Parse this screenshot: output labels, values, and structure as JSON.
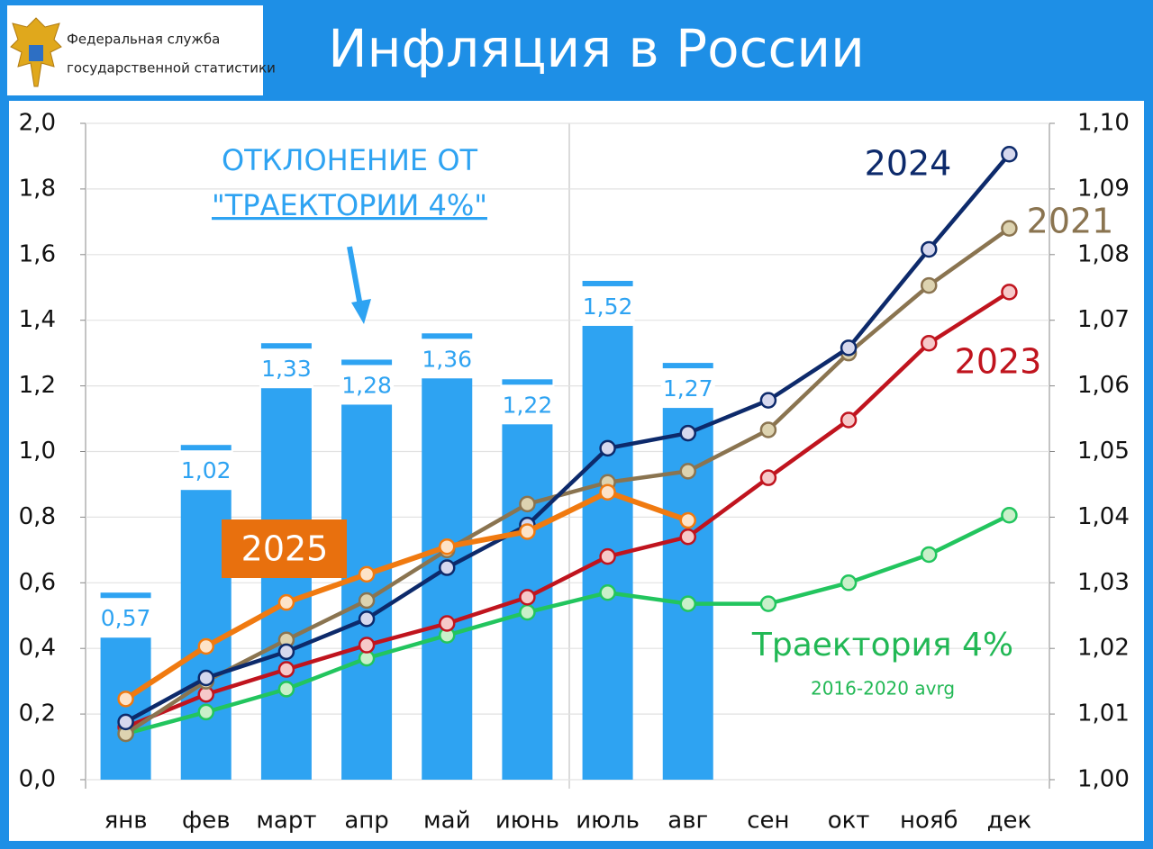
{
  "header": {
    "org_line1": "Федеральная служба",
    "org_line2": "государственной статистики"
  },
  "chart_data": {
    "type": "bar+line",
    "title": "Инфляция в России",
    "categories": [
      "янв",
      "фев",
      "март",
      "апр",
      "май",
      "июнь",
      "июль",
      "авг",
      "сен",
      "окт",
      "нояб",
      "дек"
    ],
    "ylim": [
      0,
      2.0
    ],
    "yticks": [
      {
        "value": 0,
        "label": "0,0"
      },
      {
        "value": 0.2,
        "label": "0,2"
      },
      {
        "value": 0.4,
        "label": "0,4"
      },
      {
        "value": 0.6,
        "label": "0,6"
      },
      {
        "value": 0.8,
        "label": "0,8"
      },
      {
        "value": 1.0,
        "label": "1,0"
      },
      {
        "value": 1.2,
        "label": "1,2"
      },
      {
        "value": 1.4,
        "label": "1,4"
      },
      {
        "value": 1.6,
        "label": "1,6"
      },
      {
        "value": 1.8,
        "label": "1,8"
      },
      {
        "value": 2.0,
        "label": "2,0"
      }
    ],
    "y2lim": [
      1.0,
      1.1
    ],
    "y2ticks": [
      {
        "value": 1.0,
        "label": "1,00"
      },
      {
        "value": 1.01,
        "label": "1,01"
      },
      {
        "value": 1.02,
        "label": "1,02"
      },
      {
        "value": 1.03,
        "label": "1,03"
      },
      {
        "value": 1.04,
        "label": "1,04"
      },
      {
        "value": 1.05,
        "label": "1,05"
      },
      {
        "value": 1.06,
        "label": "1,06"
      },
      {
        "value": 1.07,
        "label": "1,07"
      },
      {
        "value": 1.08,
        "label": "1,08"
      },
      {
        "value": 1.09,
        "label": "1,09"
      },
      {
        "value": 1.1,
        "label": "1,10"
      }
    ],
    "grid": true,
    "bars": {
      "color": "#2ea3f2",
      "values": [
        0.57,
        1.02,
        1.33,
        1.28,
        1.36,
        1.22,
        1.52,
        1.27,
        null,
        null,
        null,
        null
      ],
      "value_labels": [
        "0,57",
        "1,02",
        "1,33",
        "1,28",
        "1,36",
        "1,22",
        "1,52",
        "1,27",
        null,
        null,
        null,
        null
      ]
    },
    "series": [
      {
        "name": "Траектория 4%",
        "color": "#22c55e",
        "marker": "#c9f0c9",
        "axis": "y2",
        "values": [
          1.007,
          1.0103,
          1.0138,
          1.0185,
          1.022,
          1.0255,
          1.0285,
          1.0268,
          1.0268,
          1.03,
          1.0343,
          1.0403
        ]
      },
      {
        "name": "2023",
        "color": "#c0141e",
        "marker": "#f6c9c9",
        "axis": "y2",
        "values": [
          1.008,
          1.013,
          1.0168,
          1.0205,
          1.0238,
          1.0278,
          1.034,
          1.037,
          1.046,
          1.0548,
          1.0665,
          1.0743
        ]
      },
      {
        "name": "2021",
        "color": "#8a7450",
        "marker": "#ddd3b0",
        "axis": "y2",
        "values": [
          1.007,
          1.015,
          1.0213,
          1.0273,
          1.035,
          1.042,
          1.0453,
          1.047,
          1.0533,
          1.065,
          1.0753,
          1.084
        ]
      },
      {
        "name": "2024",
        "color": "#0d2a6b",
        "marker": "#d6d8ee",
        "axis": "y2",
        "values": [
          1.0088,
          1.0155,
          1.0195,
          1.0245,
          1.0323,
          1.0388,
          1.0505,
          1.0528,
          1.0578,
          1.0658,
          1.0808,
          1.0953
        ]
      },
      {
        "name": "2025",
        "color": "#f07a10",
        "marker": "#fde3c8",
        "axis": "y2",
        "values": [
          1.0123,
          1.0203,
          1.027,
          1.0313,
          1.0355,
          1.0378,
          1.0438,
          1.0395,
          null,
          null,
          null,
          null
        ]
      }
    ],
    "annotations": [
      "ОТКЛОНЕНИЕ ОТ",
      "\"ТРАЕКТОРИИ 4%\"",
      "2016-2020 avrg"
    ]
  }
}
